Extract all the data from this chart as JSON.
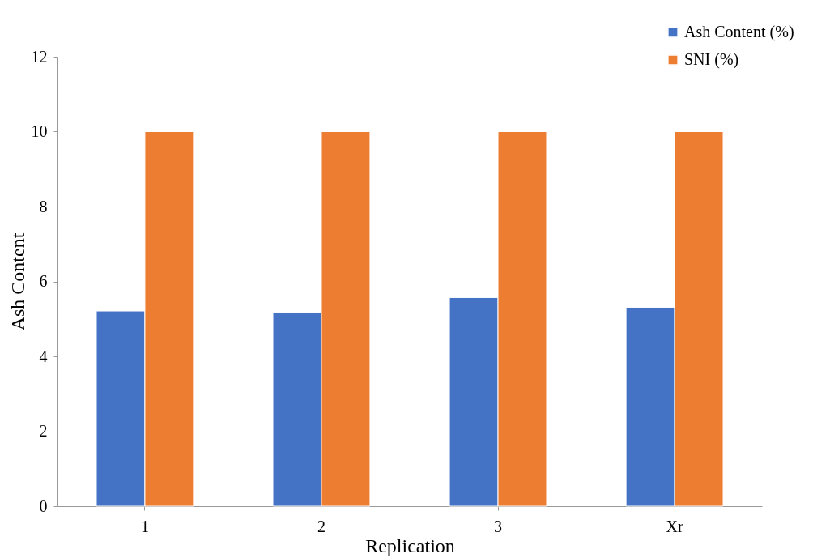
{
  "chart_data": {
    "type": "bar",
    "xlabel": "Replication",
    "ylabel": "Ash Content",
    "categories": [
      "1",
      "2",
      "3",
      "Xr"
    ],
    "series": [
      {
        "name": "Ash Content (%)",
        "color": "#4472c4",
        "values": [
          5.21,
          5.18,
          5.57,
          5.31
        ]
      },
      {
        "name": "SNI (%)",
        "color": "#ed7d31",
        "values": [
          10,
          10,
          10,
          10
        ]
      }
    ],
    "ylim": [
      0,
      12
    ],
    "yticks": [
      0,
      2,
      4,
      6,
      8,
      10,
      12
    ],
    "grid": false,
    "legend": "top right"
  }
}
